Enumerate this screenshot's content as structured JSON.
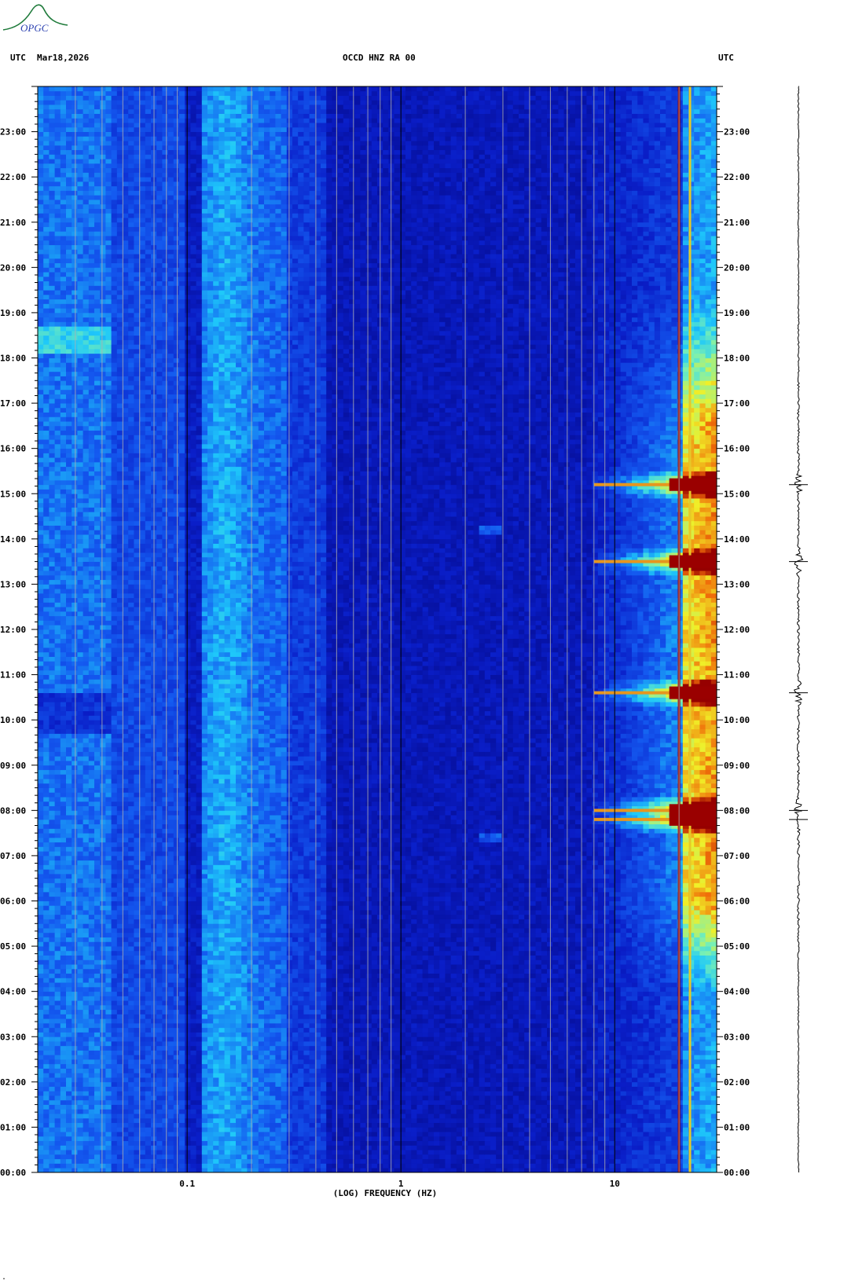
{
  "logo": {
    "text": "OPGC",
    "color": "#1e7a3a"
  },
  "header": {
    "left_tz": "UTC",
    "date": "Mar18,2026",
    "station": "OCCD HNZ RA 00",
    "right_tz": "UTC"
  },
  "colors": {
    "background_blue": "#0a1fb8",
    "accent_red": "#9a0000",
    "grid_line": "#b0b0b0"
  },
  "chart_data": {
    "type": "heatmap",
    "title": "OCCD HNZ RA 00",
    "xlabel": "(LOG) FREQUENCY (HZ)",
    "ylabel": "",
    "x_scale": "log",
    "xlim": [
      0.02,
      30
    ],
    "ylim": [
      0,
      24
    ],
    "x_tick_labels": [
      {
        "value": 0.1,
        "label": "0.1"
      },
      {
        "value": 1,
        "label": "1"
      },
      {
        "value": 10,
        "label": "10"
      }
    ],
    "y_tick_labels": [
      "00:00",
      "01:00",
      "02:00",
      "03:00",
      "04:00",
      "05:00",
      "06:00",
      "07:00",
      "08:00",
      "09:00",
      "10:00",
      "11:00",
      "12:00",
      "13:00",
      "14:00",
      "15:00",
      "16:00",
      "17:00",
      "18:00",
      "19:00",
      "20:00",
      "21:00",
      "22:00",
      "23:00"
    ],
    "grid": true,
    "colormap": "blue-cyan-yellow-red",
    "strong_events_hours": [
      7.8,
      8.0,
      10.6,
      13.5,
      15.2
    ],
    "persistent_lines_hz": [
      20,
      22.5
    ]
  }
}
